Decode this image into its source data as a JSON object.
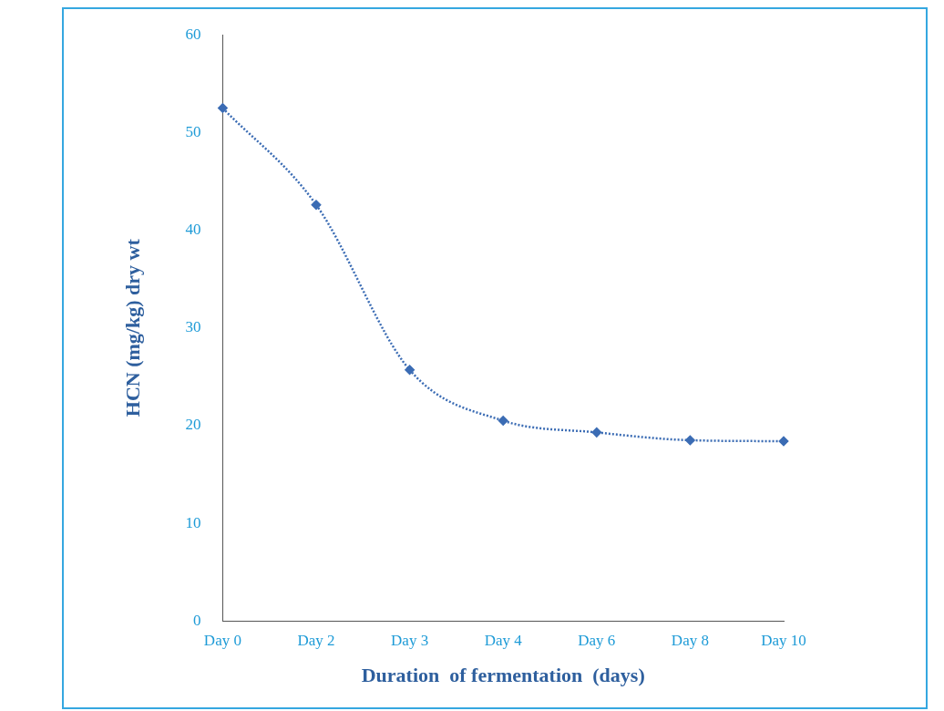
{
  "chart_data": {
    "type": "line",
    "xlabel": "Duration  of fermentation  (days)",
    "ylabel": "HCN (mg/kg) dry wt",
    "categories": [
      "Day 0",
      "Day 2",
      "Day 3",
      "Day 4",
      "Day 6",
      "Day 8",
      "Day 10"
    ],
    "series": [
      {
        "color": "#3b6cb4",
        "values": [
          52.5,
          42.6,
          25.7,
          20.5,
          19.3,
          18.5,
          18.4
        ]
      }
    ],
    "ylim": [
      0,
      60
    ],
    "yticks": [
      0,
      10,
      20,
      30,
      40,
      50,
      60
    ],
    "grid": false,
    "legend": false,
    "marker": "diamond",
    "line_style": "dotted"
  }
}
